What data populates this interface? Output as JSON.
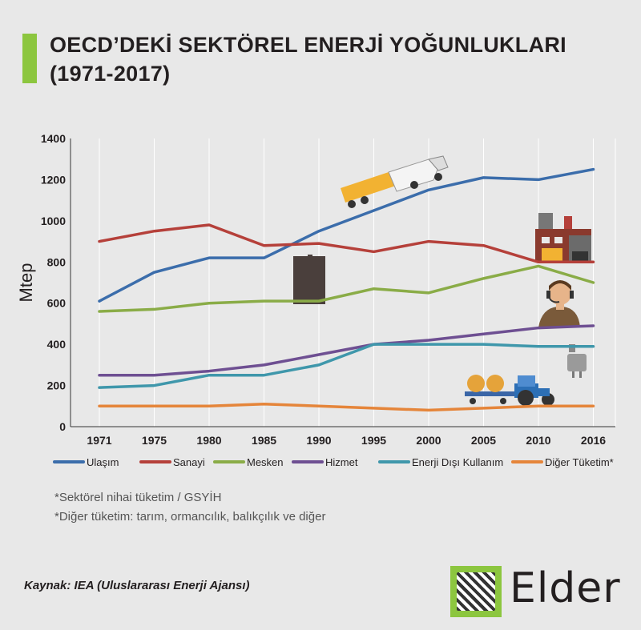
{
  "title_line1": "OECD’DEKİ SEKTÖREL ENERJİ YOĞUNLUKLARI",
  "title_line2": "(1971-2017)",
  "chart_data": {
    "type": "line",
    "ylabel": "Mtep",
    "ylim": [
      0,
      1400
    ],
    "yticks": [
      0,
      200,
      400,
      600,
      800,
      1000,
      1200,
      1400
    ],
    "categories": [
      "1971",
      "1975",
      "1980",
      "1985",
      "1990",
      "1995",
      "2000",
      "2005",
      "2010",
      "2016"
    ],
    "grid": "vertical",
    "legend": "bottom",
    "series": [
      {
        "name": "Ulaşım",
        "color": "#3b6dab",
        "values": [
          610,
          750,
          820,
          820,
          950,
          1050,
          1150,
          1210,
          1200,
          1250
        ]
      },
      {
        "name": "Sanayi",
        "color": "#b5403a",
        "values": [
          900,
          950,
          980,
          880,
          890,
          850,
          900,
          880,
          800,
          800
        ]
      },
      {
        "name": "Mesken",
        "color": "#8aac47",
        "values": [
          560,
          570,
          600,
          610,
          610,
          670,
          650,
          720,
          780,
          700
        ]
      },
      {
        "name": "Hizmet",
        "color": "#6e4f92",
        "values": [
          250,
          250,
          270,
          300,
          350,
          400,
          420,
          450,
          480,
          490
        ]
      },
      {
        "name": "Enerji Dışı Kullanım",
        "color": "#3f97ab",
        "values": [
          190,
          200,
          250,
          250,
          300,
          400,
          400,
          400,
          390,
          390
        ]
      },
      {
        "name": "Diğer Tüketim*",
        "color": "#e5853a",
        "values": [
          100,
          100,
          100,
          110,
          100,
          90,
          80,
          90,
          100,
          100
        ]
      }
    ]
  },
  "notes": {
    "line1": "*Sektörel nihai tüketim / GSYİH",
    "line2": "*Diğer tüketim: tarım, ormancılık, balıkçılık ve diğer"
  },
  "source": "Kaynak: IEA (Uluslararası Enerji Ajansı)",
  "logo_text": "Elder",
  "icons": [
    "truck-icon",
    "factory-icon",
    "building-icon",
    "person-headset-icon",
    "plug-icon",
    "tractor-icon"
  ]
}
